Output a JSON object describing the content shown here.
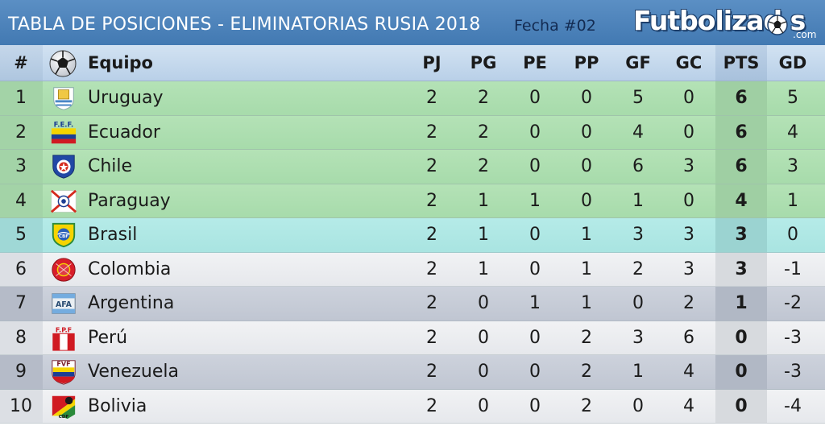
{
  "header": {
    "title": "TABLA DE POSICIONES - ELIMINATORIAS RUSIA 2018",
    "fecha": "Fecha #02",
    "logo_main": "Futbolizad  s",
    "logo_suffix": ".com"
  },
  "columns": {
    "pos": "#",
    "team": "Equipo",
    "pj": "PJ",
    "pg": "PG",
    "pe": "PE",
    "pp": "PP",
    "gf": "GF",
    "gc": "GC",
    "pts": "PTS",
    "gd": "GD"
  },
  "colors": {
    "green_row": "#b3e1b5",
    "green_row_alt": "#a6d9aa",
    "cyan_row": "#b2e8e6",
    "light_row": "#eeeff2",
    "gray_row": "#c9ced8",
    "header_bar": "#4a82bb"
  },
  "rows": [
    {
      "pos": "1",
      "team": "Uruguay",
      "pj": "2",
      "pg": "2",
      "pe": "0",
      "pp": "0",
      "gf": "5",
      "gc": "0",
      "pts": "6",
      "gd": "5",
      "zone": "green",
      "badge": "uruguay-crest-icon"
    },
    {
      "pos": "2",
      "team": "Ecuador",
      "pj": "2",
      "pg": "2",
      "pe": "0",
      "pp": "0",
      "gf": "4",
      "gc": "0",
      "pts": "6",
      "gd": "4",
      "zone": "green",
      "badge": "ecuador-crest-icon",
      "badge_text": "F.E.F."
    },
    {
      "pos": "3",
      "team": "Chile",
      "pj": "2",
      "pg": "2",
      "pe": "0",
      "pp": "0",
      "gf": "6",
      "gc": "3",
      "pts": "6",
      "gd": "3",
      "zone": "green",
      "badge": "chile-crest-icon"
    },
    {
      "pos": "4",
      "team": "Paraguay",
      "pj": "2",
      "pg": "1",
      "pe": "1",
      "pp": "0",
      "gf": "1",
      "gc": "0",
      "pts": "4",
      "gd": "1",
      "zone": "green",
      "badge": "paraguay-crest-icon"
    },
    {
      "pos": "5",
      "team": "Brasil",
      "pj": "2",
      "pg": "1",
      "pe": "0",
      "pp": "1",
      "gf": "3",
      "gc": "3",
      "pts": "3",
      "gd": "0",
      "zone": "cyan",
      "badge": "brasil-crest-icon"
    },
    {
      "pos": "6",
      "team": "Colombia",
      "pj": "2",
      "pg": "1",
      "pe": "0",
      "pp": "1",
      "gf": "2",
      "gc": "3",
      "pts": "3",
      "gd": "-1",
      "zone": "light",
      "badge": "colombia-crest-icon"
    },
    {
      "pos": "7",
      "team": "Argentina",
      "pj": "2",
      "pg": "0",
      "pe": "1",
      "pp": "1",
      "gf": "0",
      "gc": "2",
      "pts": "1",
      "gd": "-2",
      "zone": "gray",
      "badge": "argentina-crest-icon"
    },
    {
      "pos": "8",
      "team": "Perú",
      "pj": "2",
      "pg": "0",
      "pe": "0",
      "pp": "2",
      "gf": "3",
      "gc": "6",
      "pts": "0",
      "gd": "-3",
      "zone": "light",
      "badge": "peru-crest-icon",
      "badge_text": "F.P.F"
    },
    {
      "pos": "9",
      "team": "Venezuela",
      "pj": "2",
      "pg": "0",
      "pe": "0",
      "pp": "2",
      "gf": "1",
      "gc": "4",
      "pts": "0",
      "gd": "-3",
      "zone": "gray",
      "badge": "venezuela-crest-icon",
      "badge_text": "FVF"
    },
    {
      "pos": "10",
      "team": "Bolivia",
      "pj": "2",
      "pg": "0",
      "pe": "0",
      "pp": "2",
      "gf": "0",
      "gc": "4",
      "pts": "0",
      "gd": "-4",
      "zone": "light",
      "badge": "bolivia-crest-icon",
      "badge_text": "CDF"
    }
  ]
}
